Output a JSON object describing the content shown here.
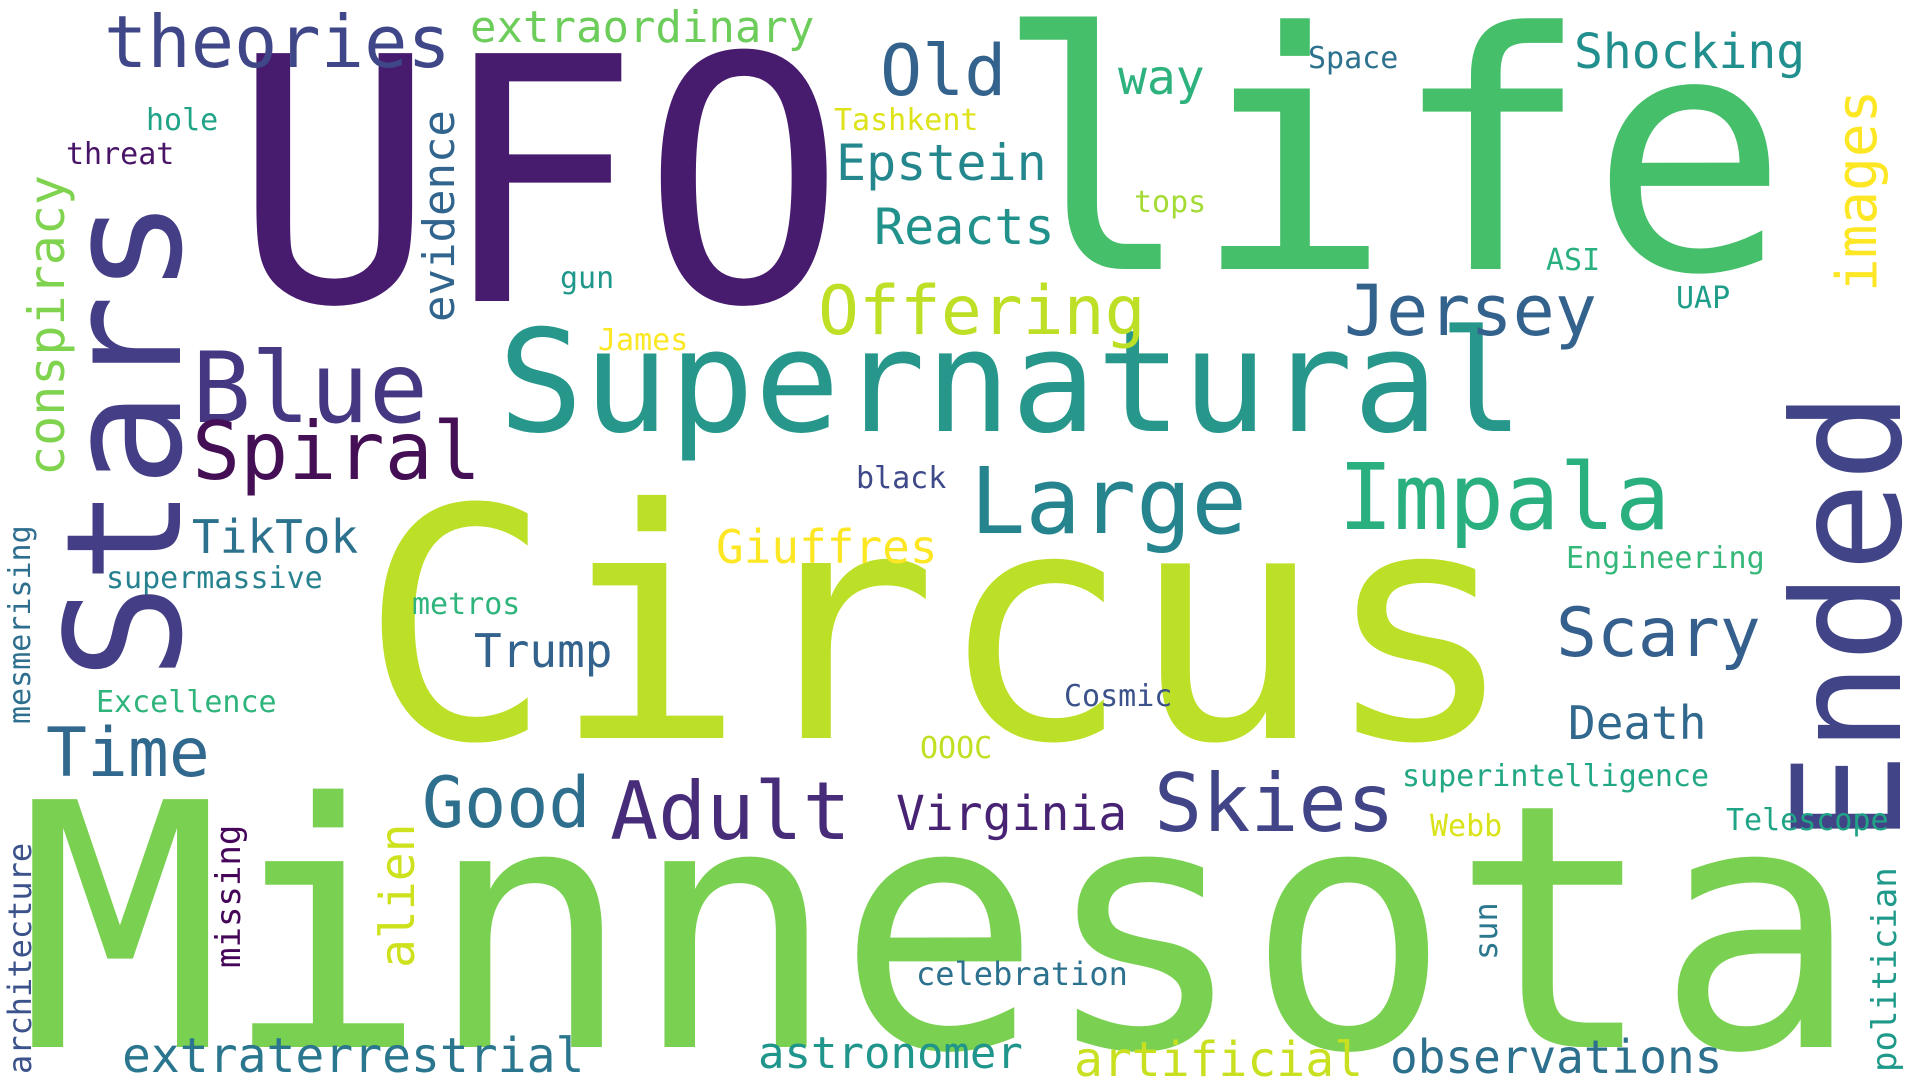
{
  "cloud": {
    "words": [
      {
        "text": "UFO",
        "color": "#471b6e"
      },
      {
        "text": "life",
        "color": "#46bf6b"
      },
      {
        "text": "Circus",
        "color": "#bcdf27"
      },
      {
        "text": "Minnesota",
        "color": "#7ad151"
      },
      {
        "text": "Stars",
        "color": "#433e85"
      },
      {
        "text": "Supernatural",
        "color": "#26978a"
      },
      {
        "text": "Ended",
        "color": "#414587"
      },
      {
        "text": "Impala",
        "color": "#2aaf7f"
      },
      {
        "text": "Large",
        "color": "#25848e"
      },
      {
        "text": "Blue",
        "color": "#453781"
      },
      {
        "text": "Spiral",
        "color": "#440f54"
      },
      {
        "text": "theories",
        "color": "#3f4788"
      },
      {
        "text": "Old",
        "color": "#33638d"
      },
      {
        "text": "extraordinary",
        "color": "#6ccd5a"
      },
      {
        "text": "Shocking",
        "color": "#218f8d"
      },
      {
        "text": "images",
        "color": "#fde725"
      },
      {
        "text": "conspiracy",
        "color": "#7fd34e"
      },
      {
        "text": "evidence",
        "color": "#32658e"
      },
      {
        "text": "Offering",
        "color": "#bddf26"
      },
      {
        "text": "Jersey",
        "color": "#33628d"
      },
      {
        "text": "Epstein",
        "color": "#24878e"
      },
      {
        "text": "Reacts",
        "color": "#21918c"
      },
      {
        "text": "way",
        "color": "#2db27d"
      },
      {
        "text": "Space",
        "color": "#2c718e"
      },
      {
        "text": "Tashkent",
        "color": "#dde318"
      },
      {
        "text": "hole",
        "color": "#20a386"
      },
      {
        "text": "threat",
        "color": "#481467"
      },
      {
        "text": "tops",
        "color": "#a5db36"
      },
      {
        "text": "gun",
        "color": "#1f978b"
      },
      {
        "text": "ASI",
        "color": "#2ab07f"
      },
      {
        "text": "UAP",
        "color": "#1e9d89"
      },
      {
        "text": "James",
        "color": "#fbe723"
      },
      {
        "text": "black",
        "color": "#3e4989"
      },
      {
        "text": "TikTok",
        "color": "#2c728e"
      },
      {
        "text": "Giuffres",
        "color": "#fde725"
      },
      {
        "text": "supermassive",
        "color": "#26828e"
      },
      {
        "text": "Scary",
        "color": "#355f8d"
      },
      {
        "text": "Engineering",
        "color": "#35b779"
      },
      {
        "text": "metros",
        "color": "#2fb47c"
      },
      {
        "text": "Trump",
        "color": "#33638d"
      },
      {
        "text": "Time",
        "color": "#31688e"
      },
      {
        "text": "Excellence",
        "color": "#2fb47c"
      },
      {
        "text": "Cosmic",
        "color": "#3b528b"
      },
      {
        "text": "Death",
        "color": "#31688e"
      },
      {
        "text": "OOOC",
        "color": "#c2df23"
      },
      {
        "text": "mesmerising",
        "color": "#2e6e8e"
      },
      {
        "text": "Good",
        "color": "#2e6f8e"
      },
      {
        "text": "Adult",
        "color": "#472c7a"
      },
      {
        "text": "Virginia",
        "color": "#482374"
      },
      {
        "text": "Skies",
        "color": "#414487"
      },
      {
        "text": "superintelligence",
        "color": "#22a884"
      },
      {
        "text": "Webb",
        "color": "#dae319"
      },
      {
        "text": "Telescope",
        "color": "#20a486"
      },
      {
        "text": "alien",
        "color": "#cde11d"
      },
      {
        "text": "missing",
        "color": "#450559"
      },
      {
        "text": "architecture",
        "color": "#3b528b"
      },
      {
        "text": "sun",
        "color": "#2a778e"
      },
      {
        "text": "celebration",
        "color": "#2c718e"
      },
      {
        "text": "politician",
        "color": "#1f9a8a"
      },
      {
        "text": "extraterrestrial",
        "color": "#2a768e"
      },
      {
        "text": "astronomer",
        "color": "#1f958b"
      },
      {
        "text": "artificial",
        "color": "#c8e020"
      },
      {
        "text": "observations",
        "color": "#2d708e"
      }
    ]
  }
}
